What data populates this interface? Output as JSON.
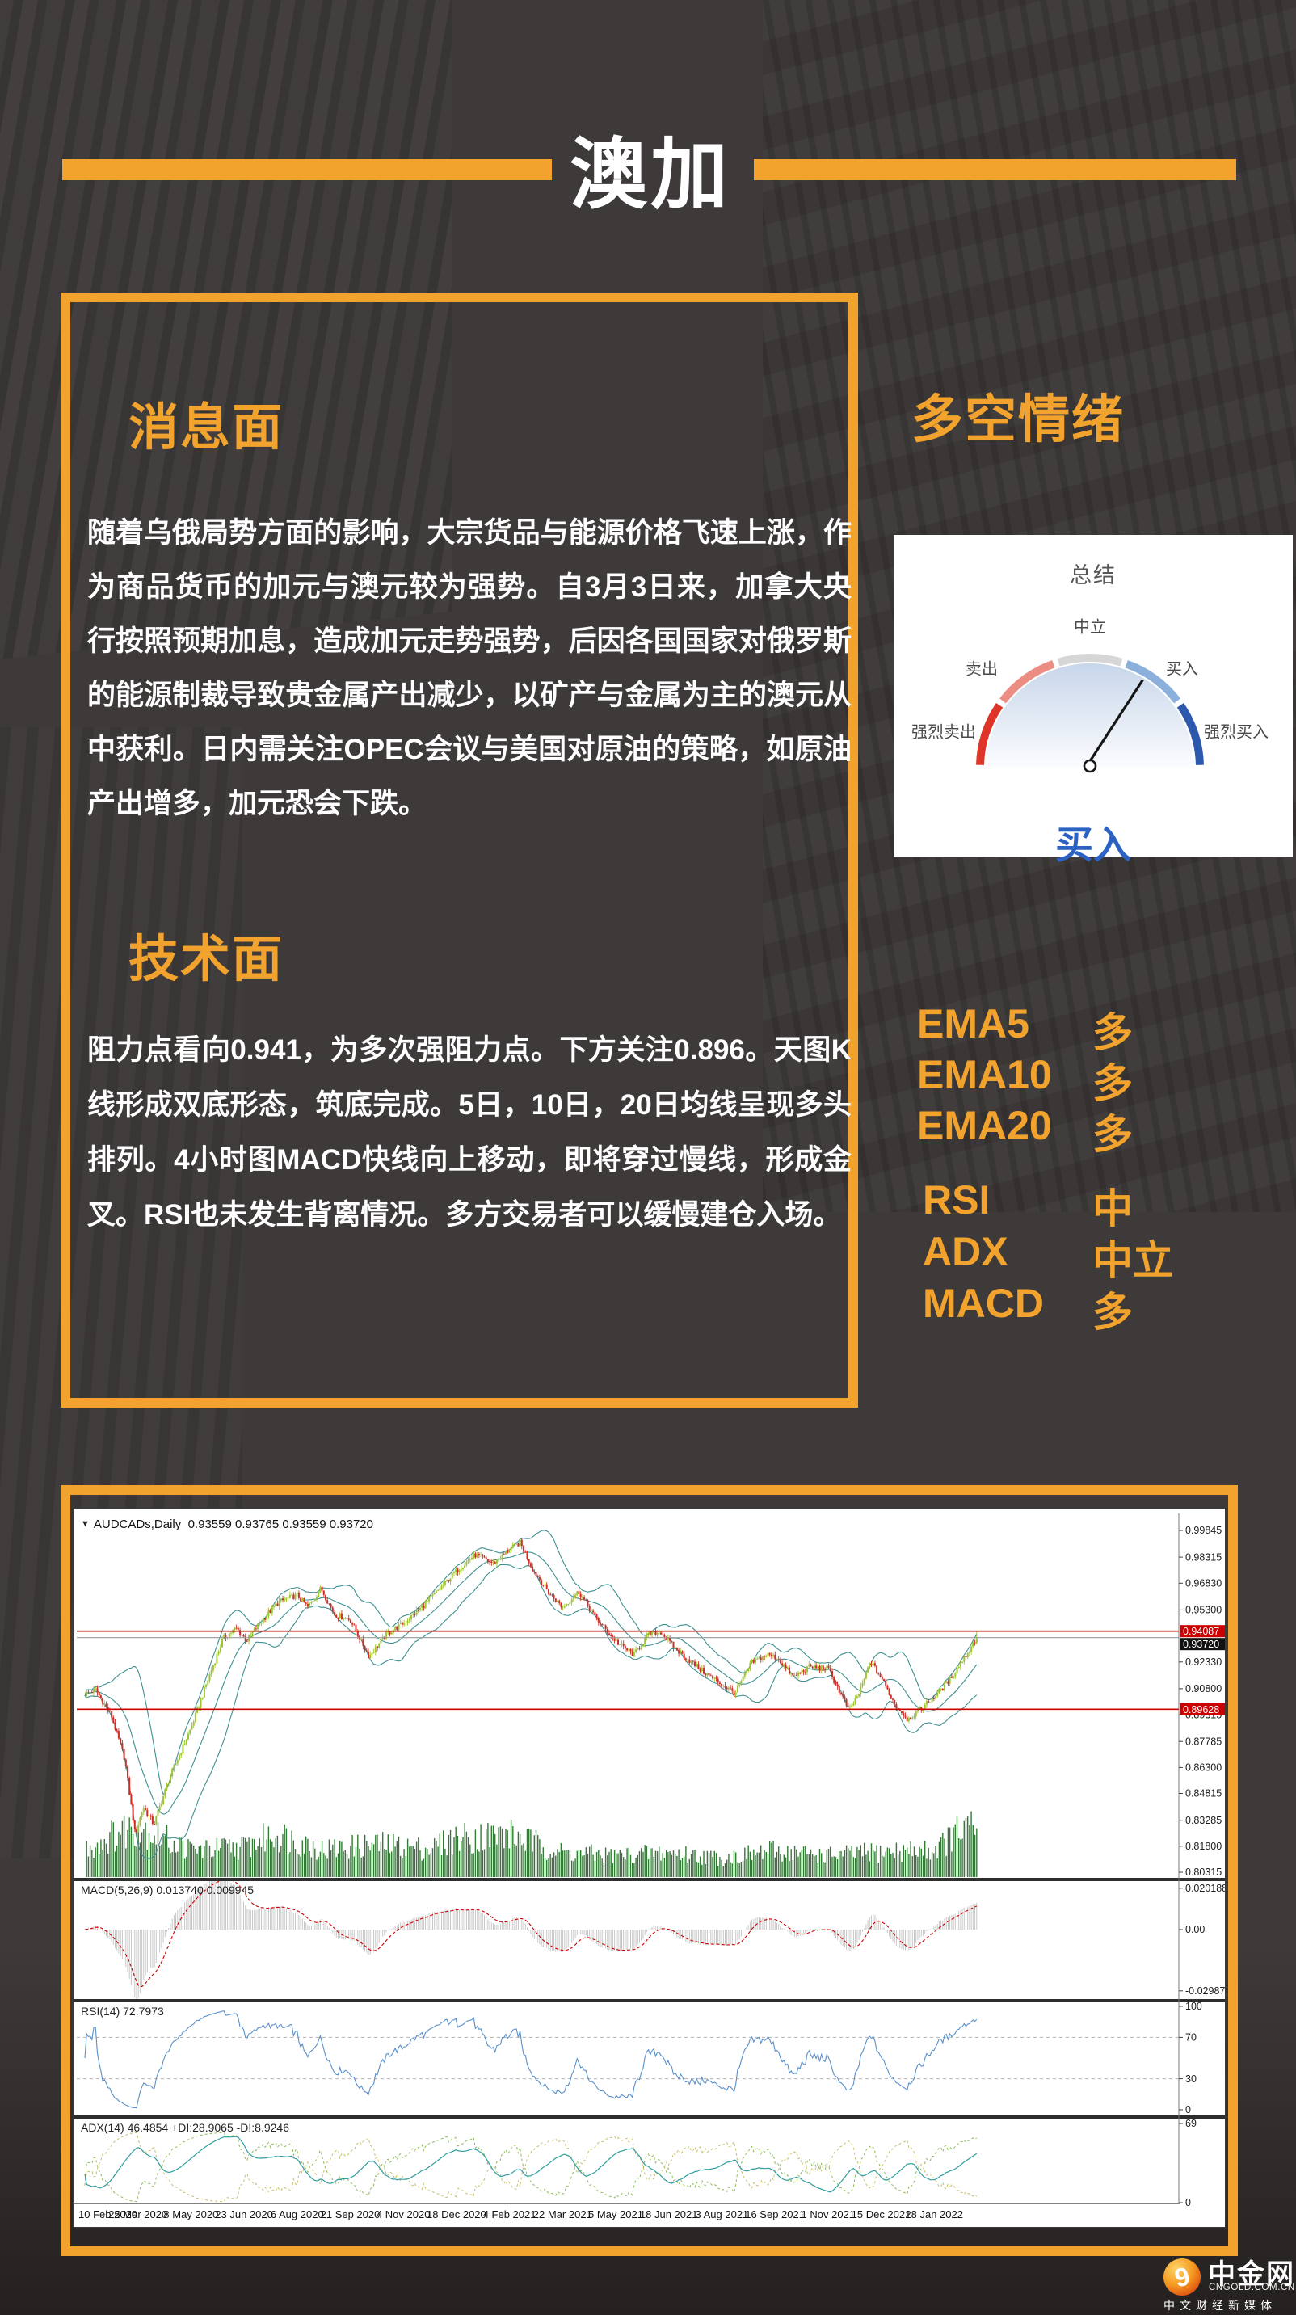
{
  "page": {
    "background": "#3e3a3a",
    "accent": "#f2a32e"
  },
  "header": {
    "title": "澳加"
  },
  "news": {
    "heading": "消息面",
    "body": "随着乌俄局势方面的影响，大宗货品与能源价格飞速上涨，作为商品货币的加元与澳元较为强势。自3月3日来，加拿大央行按照预期加息，造成加元走势强势，后因各国国家对俄罗斯的能源制裁导致贵金属产出减少，以矿产与金属为主的澳元从中获利。日内需关注OPEC会议与美国对原油的策略，如原油产出增多，加元恐会下跌。"
  },
  "technical": {
    "heading": "技术面",
    "body": "阻力点看向0.941，为多次强阻力点。下方关注0.896。天图K线形成双底形态，筑底完成。5日，10日，20日均线呈现多头排列。4小时图MACD快线向上移动，即将穿过慢线，形成金叉。RSI也未发生背离情况。多方交易者可以缓慢建仓入场。"
  },
  "sentiment": {
    "heading": "多空情绪",
    "summary_label": "总结",
    "result": "买入",
    "result_color": "#2b62c4",
    "gauge": {
      "labels": {
        "strong_sell": "强烈卖出",
        "sell": "卖出",
        "neutral": "中立",
        "buy": "买入",
        "strong_buy": "强烈买入"
      },
      "segment_colors": [
        "#df3428",
        "#ec8d84",
        "#d6d6d6",
        "#8cb0dc",
        "#2c59ae"
      ],
      "needle_angle_deg": 33
    }
  },
  "indicators": [
    {
      "name": "EMA5",
      "value": "多"
    },
    {
      "name": "EMA10",
      "value": "多"
    },
    {
      "name": "EMA20",
      "value": "多"
    },
    {
      "name": "RSI",
      "value": "中"
    },
    {
      "name": "ADX",
      "value": "中立"
    },
    {
      "name": "MACD",
      "value": "多"
    }
  ],
  "chart_data": {
    "type": "candlestick",
    "dropdown_icon": "▼",
    "title": "AUDCADs,Daily",
    "quote": "0.93559 0.93765 0.93559 0.93720",
    "ohlc": {
      "open": 0.93559,
      "high": 0.93765,
      "low": 0.93559,
      "close": 0.9372
    },
    "resistance": 0.94087,
    "support": 0.89628,
    "last_price": 0.9372,
    "spike_high": 0.9408,
    "y_axis_range": [
      0.80315,
      0.99845
    ],
    "y_ticks": [
      "0.99845",
      "0.98315",
      "0.96830",
      "0.95300",
      "0.92330",
      "0.90800",
      "0.89315",
      "0.87785",
      "0.86300",
      "0.84815",
      "0.83285",
      "0.81800",
      "0.80315"
    ],
    "x_labels": [
      "10 Feb 2020",
      "25 Mar 2020",
      "8 May 2020",
      "23 Jun 2020",
      "6 Aug 2020",
      "21 Sep 2020",
      "4 Nov 2020",
      "18 Dec 2020",
      "4 Feb 2021",
      "22 Mar 2021",
      "5 May 2021",
      "18 Jun 2021",
      "3 Aug 2021",
      "16 Sep 2021",
      "1 Nov 2021",
      "15 Dec 2021",
      "28 Jan 2022"
    ],
    "price_anchors": [
      [
        0,
        0.905
      ],
      [
        0.2,
        0.9075
      ],
      [
        0.5,
        0.8925
      ],
      [
        0.75,
        0.868
      ],
      [
        0.95,
        0.8245
      ],
      [
        1.1,
        0.8405
      ],
      [
        1.3,
        0.8305
      ],
      [
        1.6,
        0.8575
      ],
      [
        2.0,
        0.8855
      ],
      [
        2.3,
        0.9115
      ],
      [
        2.6,
        0.9365
      ],
      [
        2.85,
        0.9425
      ],
      [
        3.05,
        0.9355
      ],
      [
        3.35,
        0.9475
      ],
      [
        3.65,
        0.9575
      ],
      [
        4.0,
        0.9615
      ],
      [
        4.2,
        0.9545
      ],
      [
        4.45,
        0.9655
      ],
      [
        4.7,
        0.9505
      ],
      [
        5.0,
        0.9475
      ],
      [
        5.35,
        0.9265
      ],
      [
        5.7,
        0.9395
      ],
      [
        6.0,
        0.9455
      ],
      [
        6.35,
        0.9545
      ],
      [
        6.7,
        0.9655
      ],
      [
        7.0,
        0.9755
      ],
      [
        7.35,
        0.9845
      ],
      [
        7.7,
        0.9795
      ],
      [
        8.0,
        0.9875
      ],
      [
        8.2,
        0.9915
      ],
      [
        8.45,
        0.9755
      ],
      [
        8.75,
        0.9625
      ],
      [
        9.0,
        0.9545
      ],
      [
        9.3,
        0.9635
      ],
      [
        9.6,
        0.9495
      ],
      [
        9.9,
        0.9385
      ],
      [
        10.1,
        0.9325
      ],
      [
        10.35,
        0.9275
      ],
      [
        10.6,
        0.9385
      ],
      [
        10.85,
        0.9405
      ],
      [
        11.1,
        0.9315
      ],
      [
        11.45,
        0.9225
      ],
      [
        11.75,
        0.9155
      ],
      [
        12.05,
        0.9095
      ],
      [
        12.25,
        0.9055
      ],
      [
        12.55,
        0.9225
      ],
      [
        12.85,
        0.9275
      ],
      [
        13.05,
        0.9255
      ],
      [
        13.35,
        0.9145
      ],
      [
        13.65,
        0.9205
      ],
      [
        14.0,
        0.9195
      ],
      [
        14.2,
        0.9075
      ],
      [
        14.4,
        0.8955
      ],
      [
        14.6,
        0.9065
      ],
      [
        14.8,
        0.9235
      ],
      [
        15.0,
        0.9145
      ],
      [
        15.25,
        0.8995
      ],
      [
        15.5,
        0.8905
      ],
      [
        15.75,
        0.8965
      ],
      [
        16.0,
        0.9035
      ],
      [
        16.25,
        0.9115
      ],
      [
        16.45,
        0.9205
      ],
      [
        16.65,
        0.9295
      ],
      [
        16.8,
        0.9372
      ]
    ],
    "volume_anchors": [
      [
        0,
        0.5
      ],
      [
        0.7,
        0.85
      ],
      [
        1.0,
        0.95
      ],
      [
        1.4,
        0.75
      ],
      [
        2,
        0.5
      ],
      [
        3,
        0.55
      ],
      [
        3.6,
        0.8
      ],
      [
        4.5,
        0.5
      ],
      [
        5.5,
        0.6
      ],
      [
        6.5,
        0.52
      ],
      [
        7,
        0.72
      ],
      [
        8,
        0.78
      ],
      [
        9,
        0.45
      ],
      [
        10,
        0.4
      ],
      [
        11,
        0.45
      ],
      [
        12,
        0.35
      ],
      [
        13,
        0.48
      ],
      [
        14,
        0.4
      ],
      [
        15,
        0.46
      ],
      [
        16,
        0.5
      ],
      [
        16.5,
        0.85
      ],
      [
        16.8,
        0.9
      ]
    ],
    "panes": {
      "macd": {
        "label": "MACD(5,26,9) 0.013740 0.009945",
        "ticks": [
          "0.020188",
          "0.00",
          "-0.029878"
        ]
      },
      "rsi": {
        "label": "RSI(14) 72.7973",
        "ticks": [
          "100",
          "70",
          "30",
          "0"
        ],
        "levels": [
          70,
          30
        ]
      },
      "adx": {
        "label": "ADX(14) 46.4854 +DI:28.9065 -DI:8.9246",
        "ticks": [
          "69",
          "0"
        ]
      }
    },
    "colors": {
      "bull": "#9ec431",
      "bear": "#cc2f28",
      "band": "#3f9090",
      "volume": "#337a36",
      "macd_hist": "#c6c6c6",
      "macd_signal": "#cc0000",
      "rsi_line": "#5b8fc9",
      "adx_line": "#2f9e9e",
      "plus_di": "#8fbc5a",
      "minus_di": "#c9bf6e",
      "level_line": "#cc0000",
      "last_line": "#9a9a9a"
    }
  },
  "footer_logo": {
    "name": "中金网",
    "domain": "CNGOLD.COM.CN",
    "tagline": "中文财经新媒体"
  }
}
